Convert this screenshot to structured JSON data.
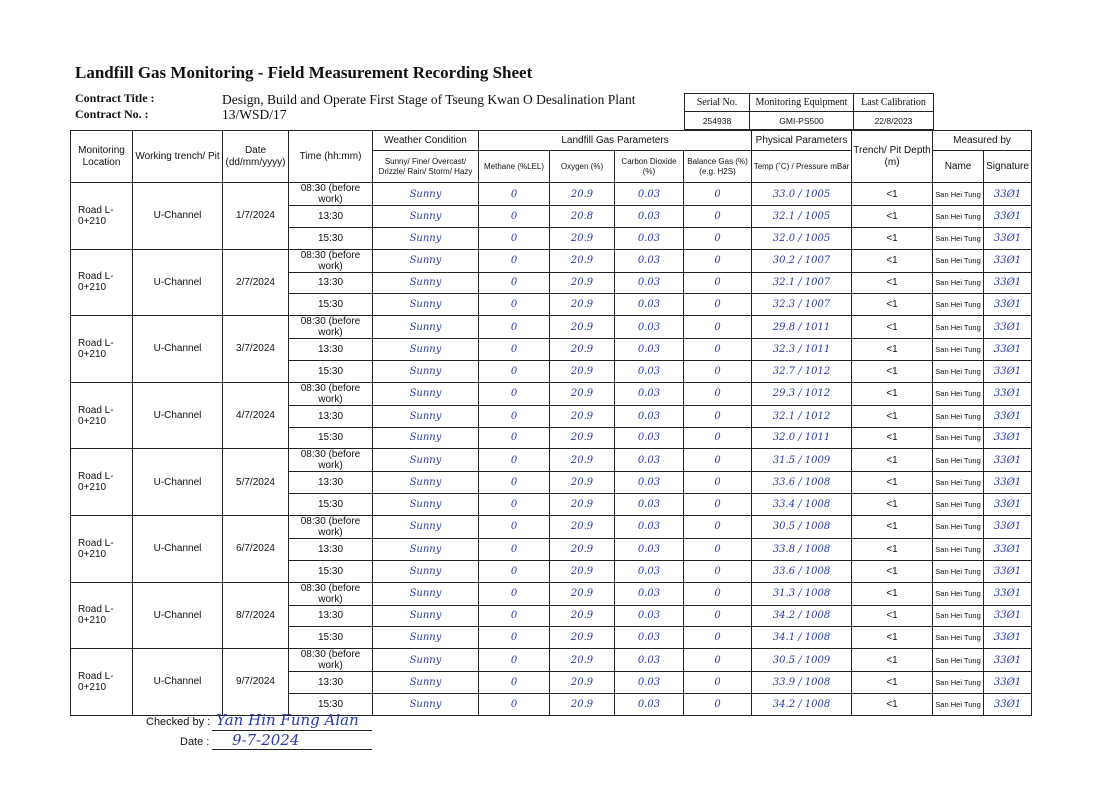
{
  "title": "Landfill Gas Monitoring - Field Measurement Recording Sheet",
  "contract": {
    "title_label": "Contract Title :",
    "title_value": "Design, Build and Operate First Stage of Tseung Kwan O Desalination Plant",
    "no_label": "Contract No. :",
    "no_value": "13/WSD/17"
  },
  "equipment": {
    "headers": [
      "Serial No.",
      "Monitoring Equipment",
      "Last Calibration"
    ],
    "values": [
      "254938",
      "GMI-PS500",
      "22/8/2023"
    ]
  },
  "table": {
    "headers": {
      "location": "Monitoring Location",
      "trench": "Working trench/ Pit",
      "date": "Date (dd/mm/yyyy)",
      "time": "Time (hh:mm)",
      "weather_group": "Weather Condition",
      "weather": "Sunny/ Fine/ Overcast/ Drizzle/ Rain/ Storm/ Hazy",
      "gas_group": "Landfill Gas Parameters",
      "methane": "Methane (%LEL)",
      "oxygen": "Oxygen (%)",
      "co2": "Carbon Dioxide (%)",
      "balance": "Balance Gas (%) (e.g. H2S)",
      "physical_group": "Physical Parameters",
      "temp": "Temp (˚C) / Pressure mBar",
      "depth": "Trench/ Pit Depth (m)",
      "measured_group": "Measured by",
      "name": "Name",
      "signature": "Signature"
    },
    "groups": [
      {
        "location": "Road L-0+210",
        "trench": "U-Channel",
        "date": "1/7/2024",
        "rows": [
          {
            "time": "08:30 (before work)",
            "weather": "Sunny",
            "methane": "0",
            "oxygen": "20.9",
            "co2": "0.03",
            "balance": "0",
            "temp_pressure": "33.0 / 1005",
            "depth": "<1",
            "name": "San Hei Tung",
            "signature": "33Ø1"
          },
          {
            "time": "13:30",
            "weather": "Sunny",
            "methane": "0",
            "oxygen": "20.8",
            "co2": "0.03",
            "balance": "0",
            "temp_pressure": "32.1 / 1005",
            "depth": "<1",
            "name": "San Hei Tung",
            "signature": "33Ø1"
          },
          {
            "time": "15:30",
            "weather": "Sunny",
            "methane": "0",
            "oxygen": "20.9",
            "co2": "0.03",
            "balance": "0",
            "temp_pressure": "32.0 / 1005",
            "depth": "<1",
            "name": "San Hei Tung",
            "signature": "33Ø1"
          }
        ]
      },
      {
        "location": "Road L-0+210",
        "trench": "U-Channel",
        "date": "2/7/2024",
        "rows": [
          {
            "time": "08:30 (before work)",
            "weather": "Sunny",
            "methane": "0",
            "oxygen": "20.9",
            "co2": "0.03",
            "balance": "0",
            "temp_pressure": "30.2 / 1007",
            "depth": "<1",
            "name": "San Hei Tung",
            "signature": "33Ø1"
          },
          {
            "time": "13:30",
            "weather": "Sunny",
            "methane": "0",
            "oxygen": "20.9",
            "co2": "0.03",
            "balance": "0",
            "temp_pressure": "32.1 / 1007",
            "depth": "<1",
            "name": "San Hei Tung",
            "signature": "33Ø1"
          },
          {
            "time": "15:30",
            "weather": "Sunny",
            "methane": "0",
            "oxygen": "20.9",
            "co2": "0.03",
            "balance": "0",
            "temp_pressure": "32.3 / 1007",
            "depth": "<1",
            "name": "San Hei Tung",
            "signature": "33Ø1"
          }
        ]
      },
      {
        "location": "Road L-0+210",
        "trench": "U-Channel",
        "date": "3/7/2024",
        "rows": [
          {
            "time": "08:30 (before work)",
            "weather": "Sunny",
            "methane": "0",
            "oxygen": "20.9",
            "co2": "0.03",
            "balance": "0",
            "temp_pressure": "29.8 / 1011",
            "depth": "<1",
            "name": "San Hei Tung",
            "signature": "33Ø1"
          },
          {
            "time": "13:30",
            "weather": "Sunny",
            "methane": "0",
            "oxygen": "20.9",
            "co2": "0.03",
            "balance": "0",
            "temp_pressure": "32.3 / 1011",
            "depth": "<1",
            "name": "San Hei Tung",
            "signature": "33Ø1"
          },
          {
            "time": "15:30",
            "weather": "Sunny",
            "methane": "0",
            "oxygen": "20.9",
            "co2": "0.03",
            "balance": "0",
            "temp_pressure": "32.7 / 1012",
            "depth": "<1",
            "name": "San Hei Tung",
            "signature": "33Ø1"
          }
        ]
      },
      {
        "location": "Road L-0+210",
        "trench": "U-Channel",
        "date": "4/7/2024",
        "rows": [
          {
            "time": "08:30 (before work)",
            "weather": "Sunny",
            "methane": "0",
            "oxygen": "20.9",
            "co2": "0.03",
            "balance": "0",
            "temp_pressure": "29.3 / 1012",
            "depth": "<1",
            "name": "San Hei Tung",
            "signature": "33Ø1"
          },
          {
            "time": "13:30",
            "weather": "Sunny",
            "methane": "0",
            "oxygen": "20.9",
            "co2": "0.03",
            "balance": "0",
            "temp_pressure": "32.1 / 1012",
            "depth": "<1",
            "name": "San Hei Tung",
            "signature": "33Ø1"
          },
          {
            "time": "15:30",
            "weather": "Sunny",
            "methane": "0",
            "oxygen": "20.9",
            "co2": "0.03",
            "balance": "0",
            "temp_pressure": "32.0 / 1011",
            "depth": "<1",
            "name": "San Hei Tung",
            "signature": "33Ø1"
          }
        ]
      },
      {
        "location": "Road L-0+210",
        "trench": "U-Channel",
        "date": "5/7/2024",
        "rows": [
          {
            "time": "08:30 (before work)",
            "weather": "Sunny",
            "methane": "0",
            "oxygen": "20.9",
            "co2": "0.03",
            "balance": "0",
            "temp_pressure": "31.5 / 1009",
            "depth": "<1",
            "name": "San Hei Tung",
            "signature": "33Ø1"
          },
          {
            "time": "13:30",
            "weather": "Sunny",
            "methane": "0",
            "oxygen": "20.9",
            "co2": "0.03",
            "balance": "0",
            "temp_pressure": "33.6 / 1008",
            "depth": "<1",
            "name": "San Hei Tung",
            "signature": "33Ø1"
          },
          {
            "time": "15:30",
            "weather": "Sunny",
            "methane": "0",
            "oxygen": "20.9",
            "co2": "0.03",
            "balance": "0",
            "temp_pressure": "33.4 / 1008",
            "depth": "<1",
            "name": "San Hei Tung",
            "signature": "33Ø1"
          }
        ]
      },
      {
        "location": "Road L-0+210",
        "trench": "U-Channel",
        "date": "6/7/2024",
        "rows": [
          {
            "time": "08:30 (before work)",
            "weather": "Sunny",
            "methane": "0",
            "oxygen": "20.9",
            "co2": "0.03",
            "balance": "0",
            "temp_pressure": "30.5 / 1008",
            "depth": "<1",
            "name": "San Hei Tung",
            "signature": "33Ø1"
          },
          {
            "time": "13:30",
            "weather": "Sunny",
            "methane": "0",
            "oxygen": "20.9",
            "co2": "0.03",
            "balance": "0",
            "temp_pressure": "33.8 / 1008",
            "depth": "<1",
            "name": "San Hei Tung",
            "signature": "33Ø1"
          },
          {
            "time": "15:30",
            "weather": "Sunny",
            "methane": "0",
            "oxygen": "20.9",
            "co2": "0.03",
            "balance": "0",
            "temp_pressure": "33.6 / 1008",
            "depth": "<1",
            "name": "San Hei Tung",
            "signature": "33Ø1"
          }
        ]
      },
      {
        "location": "Road L-0+210",
        "trench": "U-Channel",
        "date": "8/7/2024",
        "rows": [
          {
            "time": "08:30 (before work)",
            "weather": "Sunny",
            "methane": "0",
            "oxygen": "20.9",
            "co2": "0.03",
            "balance": "0",
            "temp_pressure": "31.3 / 1008",
            "depth": "<1",
            "name": "San Hei Tung",
            "signature": "33Ø1"
          },
          {
            "time": "13:30",
            "weather": "Sunny",
            "methane": "0",
            "oxygen": "20.9",
            "co2": "0.03",
            "balance": "0",
            "temp_pressure": "34.2 / 1008",
            "depth": "<1",
            "name": "San Hei Tung",
            "signature": "33Ø1"
          },
          {
            "time": "15:30",
            "weather": "Sunny",
            "methane": "0",
            "oxygen": "20.9",
            "co2": "0.03",
            "balance": "0",
            "temp_pressure": "34.1 / 1008",
            "depth": "<1",
            "name": "San Hei Tung",
            "signature": "33Ø1"
          }
        ]
      },
      {
        "location": "Road L-0+210",
        "trench": "U-Channel",
        "date": "9/7/2024",
        "rows": [
          {
            "time": "08:30 (before work)",
            "weather": "Sunny",
            "methane": "0",
            "oxygen": "20.9",
            "co2": "0.03",
            "balance": "0",
            "temp_pressure": "30.5 / 1009",
            "depth": "<1",
            "name": "San Hei Tung",
            "signature": "33Ø1"
          },
          {
            "time": "13:30",
            "weather": "Sunny",
            "methane": "0",
            "oxygen": "20.9",
            "co2": "0.03",
            "balance": "0",
            "temp_pressure": "33.9 / 1008",
            "depth": "<1",
            "name": "San Hei Tung",
            "signature": "33Ø1"
          },
          {
            "time": "15:30",
            "weather": "Sunny",
            "methane": "0",
            "oxygen": "20.9",
            "co2": "0.03",
            "balance": "0",
            "temp_pressure": "34.2 / 1008",
            "depth": "<1",
            "name": "San Hei Tung",
            "signature": "33Ø1"
          }
        ]
      }
    ]
  },
  "footer": {
    "checked_by_label": "Checked by :",
    "checked_by_value": "Yan Hin Fung Alan",
    "date_label": "Date :",
    "date_value": "9-7-2024"
  },
  "colors": {
    "ink": "#2b3aa8"
  }
}
